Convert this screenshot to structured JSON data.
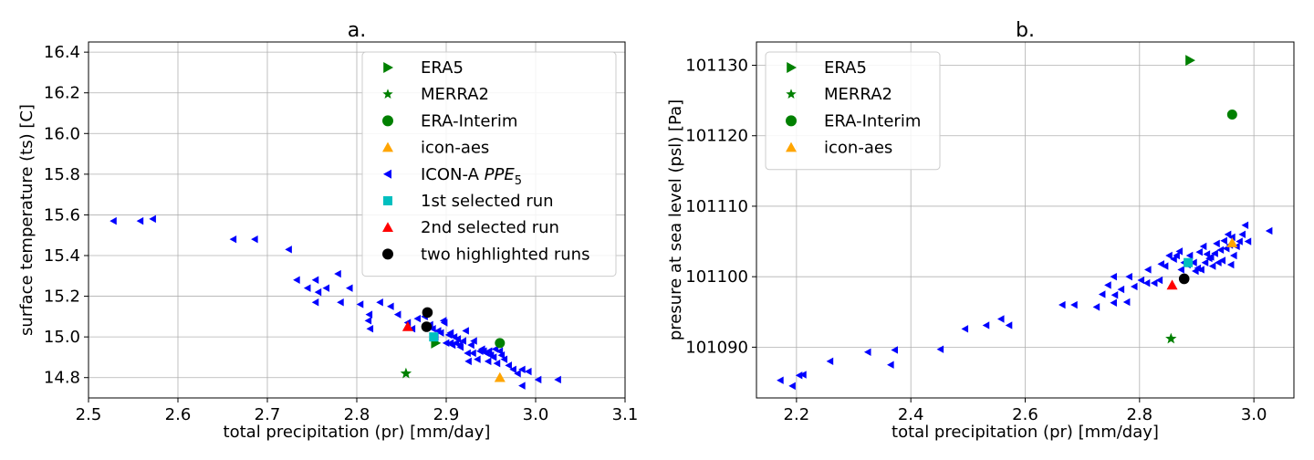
{
  "chart_data": [
    {
      "type": "scatter",
      "title": "a.",
      "xlabel": "total precipitation (pr) [mm/day]",
      "ylabel": "surface temperature (ts) [C]",
      "xlim": [
        2.5,
        3.1
      ],
      "ylim": [
        14.7,
        16.45
      ],
      "xticks": [
        "2.5",
        "2.6",
        "2.7",
        "2.8",
        "2.9",
        "3.0",
        "3.1"
      ],
      "yticks": [
        "14.8",
        "15.0",
        "15.2",
        "15.4",
        "15.6",
        "15.8",
        "16.0",
        "16.2",
        "16.4"
      ],
      "grid": true,
      "legend_position": "top-right",
      "legend": [
        "ERA5",
        "MERRA2",
        "ERA-Interim",
        "icon-aes",
        "ICON-A PPE",
        "1st selected run",
        "2nd selected run",
        "two highlighted runs"
      ],
      "legend_subscript": "5",
      "colors": {
        "ERA5": "#008000",
        "MERRA2": "#008000",
        "ERA-Interim": "#008000",
        "icon-aes": "#ffa500",
        "ICON-A PPE": "#0000ff",
        "1st selected run": "#00bfbf",
        "2nd selected run": "#ff0000",
        "two highlighted runs": "#000000"
      },
      "markers": {
        "ERA5": "triangle-right",
        "MERRA2": "star",
        "ERA-Interim": "circle",
        "icon-aes": "triangle-up",
        "ICON-A PPE": "triangle-left",
        "1st selected run": "square",
        "2nd selected run": "triangle-up",
        "two highlighted runs": "circle"
      },
      "series": [
        {
          "name": "ICON-A PPE",
          "points": [
            [
              2.528,
              15.57
            ],
            [
              2.558,
              15.57
            ],
            [
              2.572,
              15.58
            ],
            [
              2.662,
              15.48
            ],
            [
              2.686,
              15.48
            ],
            [
              2.724,
              15.43
            ],
            [
              2.733,
              15.28
            ],
            [
              2.745,
              15.24
            ],
            [
              2.754,
              15.28
            ],
            [
              2.757,
              15.22
            ],
            [
              2.754,
              15.17
            ],
            [
              2.766,
              15.24
            ],
            [
              2.779,
              15.31
            ],
            [
              2.782,
              15.17
            ],
            [
              2.792,
              15.24
            ],
            [
              2.804,
              15.16
            ],
            [
              2.814,
              15.11
            ],
            [
              2.813,
              15.08
            ],
            [
              2.815,
              15.04
            ],
            [
              2.826,
              15.17
            ],
            [
              2.838,
              15.15
            ],
            [
              2.846,
              15.11
            ],
            [
              2.857,
              15.07
            ],
            [
              2.862,
              15.04
            ],
            [
              2.868,
              15.09
            ],
            [
              2.876,
              15.1
            ],
            [
              2.882,
              15.06
            ],
            [
              2.885,
              15.04
            ],
            [
              2.888,
              15.0
            ],
            [
              2.891,
              15.03
            ],
            [
              2.894,
              15.02
            ],
            [
              2.897,
              15.08
            ],
            [
              2.898,
              15.07
            ],
            [
              2.9,
              14.97
            ],
            [
              2.903,
              15.01
            ],
            [
              2.905,
              14.97
            ],
            [
              2.907,
              14.96
            ],
            [
              2.909,
              15.0
            ],
            [
              2.911,
              14.97
            ],
            [
              2.913,
              14.99
            ],
            [
              2.916,
              14.95
            ],
            [
              2.919,
              14.98
            ],
            [
              2.922,
              15.03
            ],
            [
              2.924,
              14.92
            ],
            [
              2.925,
              14.88
            ],
            [
              2.928,
              14.96
            ],
            [
              2.931,
              14.98
            ],
            [
              2.935,
              14.89
            ],
            [
              2.938,
              14.93
            ],
            [
              2.942,
              14.93
            ],
            [
              2.945,
              14.92
            ],
            [
              2.947,
              14.88
            ],
            [
              2.95,
              14.91
            ],
            [
              2.953,
              14.9
            ],
            [
              2.955,
              14.94
            ],
            [
              2.957,
              14.87
            ],
            [
              2.96,
              14.93
            ],
            [
              2.962,
              14.91
            ],
            [
              2.965,
              14.89
            ],
            [
              2.97,
              14.86
            ],
            [
              2.975,
              14.84
            ],
            [
              2.98,
              14.82
            ],
            [
              2.985,
              14.76
            ],
            [
              2.985,
              14.84
            ],
            [
              2.992,
              14.83
            ],
            [
              3.003,
              14.79
            ],
            [
              3.025,
              14.79
            ],
            [
              2.905,
              15.02
            ],
            [
              2.915,
              14.96
            ],
            [
              2.93,
              14.92
            ],
            [
              2.94,
              14.94
            ],
            [
              2.948,
              14.93
            ]
          ]
        },
        {
          "name": "ERA5",
          "points": [
            [
              2.888,
              14.97
            ]
          ]
        },
        {
          "name": "MERRA2",
          "points": [
            [
              2.855,
              14.82
            ]
          ]
        },
        {
          "name": "ERA-Interim",
          "points": [
            [
              2.96,
              14.97
            ]
          ]
        },
        {
          "name": "icon-aes",
          "points": [
            [
              2.96,
              14.8
            ]
          ]
        },
        {
          "name": "1st selected run",
          "points": [
            [
              2.886,
              15.0
            ]
          ]
        },
        {
          "name": "2nd selected run",
          "points": [
            [
              2.857,
              15.05
            ]
          ]
        },
        {
          "name": "two highlighted runs",
          "points": [
            [
              2.879,
              15.12
            ],
            [
              2.878,
              15.05
            ]
          ]
        }
      ]
    },
    {
      "type": "scatter",
      "title": "b.",
      "xlabel": "total precipitation (pr) [mm/day]",
      "ylabel": "presure at sea level (psl) [Pa]",
      "xlim": [
        2.13,
        3.07
      ],
      "ylim": [
        101082.8,
        101133.3
      ],
      "xticks": [
        "2.2",
        "2.4",
        "2.6",
        "2.8",
        "3.0"
      ],
      "yticks": [
        "101090",
        "101100",
        "101110",
        "101120",
        "101130"
      ],
      "grid": true,
      "legend_position": "top-left",
      "legend": [
        "ERA5",
        "MERRA2",
        "ERA-Interim",
        "icon-aes"
      ],
      "colors": {
        "ERA5": "#008000",
        "MERRA2": "#008000",
        "ERA-Interim": "#008000",
        "icon-aes": "#ffa500",
        "ICON-A PPE": "#0000ff",
        "1st selected run": "#00bfbf",
        "2nd selected run": "#ff0000",
        "two highlighted runs": "#000000"
      },
      "markers": {
        "ERA5": "triangle-right",
        "MERRA2": "star",
        "ERA-Interim": "circle",
        "icon-aes": "triangle-up",
        "ICON-A PPE": "triangle-left",
        "1st selected run": "square",
        "2nd selected run": "triangle-up",
        "two highlighted runs": "circle"
      },
      "series": [
        {
          "name": "ICON-A PPE",
          "points": [
            [
              2.172,
              101085.3
            ],
            [
              2.193,
              101084.5
            ],
            [
              2.205,
              101086.0
            ],
            [
              2.212,
              101086.1
            ],
            [
              2.259,
              101088.0
            ],
            [
              2.325,
              101089.3
            ],
            [
              2.365,
              101087.5
            ],
            [
              2.372,
              101089.6
            ],
            [
              2.452,
              101089.7
            ],
            [
              2.495,
              101092.6
            ],
            [
              2.532,
              101093.1
            ],
            [
              2.558,
              101094.0
            ],
            [
              2.572,
              101093.1
            ],
            [
              2.665,
              101096.0
            ],
            [
              2.686,
              101096.0
            ],
            [
              2.725,
              101095.7
            ],
            [
              2.735,
              101097.5
            ],
            [
              2.745,
              101098.8
            ],
            [
              2.755,
              101096.3
            ],
            [
              2.757,
              101097.4
            ],
            [
              2.755,
              101100.0
            ],
            [
              2.768,
              101098.2
            ],
            [
              2.778,
              101096.4
            ],
            [
              2.782,
              101100.0
            ],
            [
              2.791,
              101098.6
            ],
            [
              2.803,
              101099.5
            ],
            [
              2.813,
              101099.1
            ],
            [
              2.815,
              101101.0
            ],
            [
              2.826,
              101099.1
            ],
            [
              2.835,
              101099.5
            ],
            [
              2.838,
              101101.8
            ],
            [
              2.845,
              101101.5
            ],
            [
              2.852,
              101103.0
            ],
            [
              2.86,
              101102.5
            ],
            [
              2.865,
              101103.0
            ],
            [
              2.87,
              101103.6
            ],
            [
              2.873,
              101101.0
            ],
            [
              2.878,
              101102.0
            ],
            [
              2.884,
              101101.7
            ],
            [
              2.888,
              101103.0
            ],
            [
              2.895,
              101102.0
            ],
            [
              2.898,
              101100.8
            ],
            [
              2.902,
              101101.2
            ],
            [
              2.905,
              101103.5
            ],
            [
              2.908,
              101101.0
            ],
            [
              2.912,
              101104.3
            ],
            [
              2.915,
              101102.0
            ],
            [
              2.918,
              101103.2
            ],
            [
              2.922,
              101102.6
            ],
            [
              2.925,
              101102.8
            ],
            [
              2.928,
              101101.5
            ],
            [
              2.932,
              101103.3
            ],
            [
              2.935,
              101104.7
            ],
            [
              2.938,
              101102.0
            ],
            [
              2.942,
              101103.8
            ],
            [
              2.945,
              101102.3
            ],
            [
              2.948,
              101105.1
            ],
            [
              2.952,
              101104.0
            ],
            [
              2.955,
              101106.0
            ],
            [
              2.958,
              101104.5
            ],
            [
              2.96,
              101101.7
            ],
            [
              2.962,
              101105.6
            ],
            [
              2.965,
              101103.0
            ],
            [
              2.97,
              101104.3
            ],
            [
              2.975,
              101105.0
            ],
            [
              2.98,
              101106.0
            ],
            [
              2.985,
              101107.3
            ],
            [
              2.99,
              101105.0
            ],
            [
              3.027,
              101106.5
            ]
          ]
        },
        {
          "name": "ERA5",
          "points": [
            [
              2.888,
              101130.7
            ]
          ]
        },
        {
          "name": "MERRA2",
          "points": [
            [
              2.855,
              101091.2
            ]
          ]
        },
        {
          "name": "ERA-Interim",
          "points": [
            [
              2.962,
              101123.0
            ]
          ]
        },
        {
          "name": "icon-aes",
          "points": [
            [
              2.962,
              101104.8
            ]
          ]
        },
        {
          "name": "1st selected run",
          "points": [
            [
              2.885,
              101102.0
            ]
          ]
        },
        {
          "name": "2nd selected run",
          "points": [
            [
              2.857,
              101098.8
            ]
          ]
        },
        {
          "name": "two highlighted runs",
          "points": [
            [
              2.878,
              101099.7
            ]
          ]
        }
      ]
    }
  ]
}
